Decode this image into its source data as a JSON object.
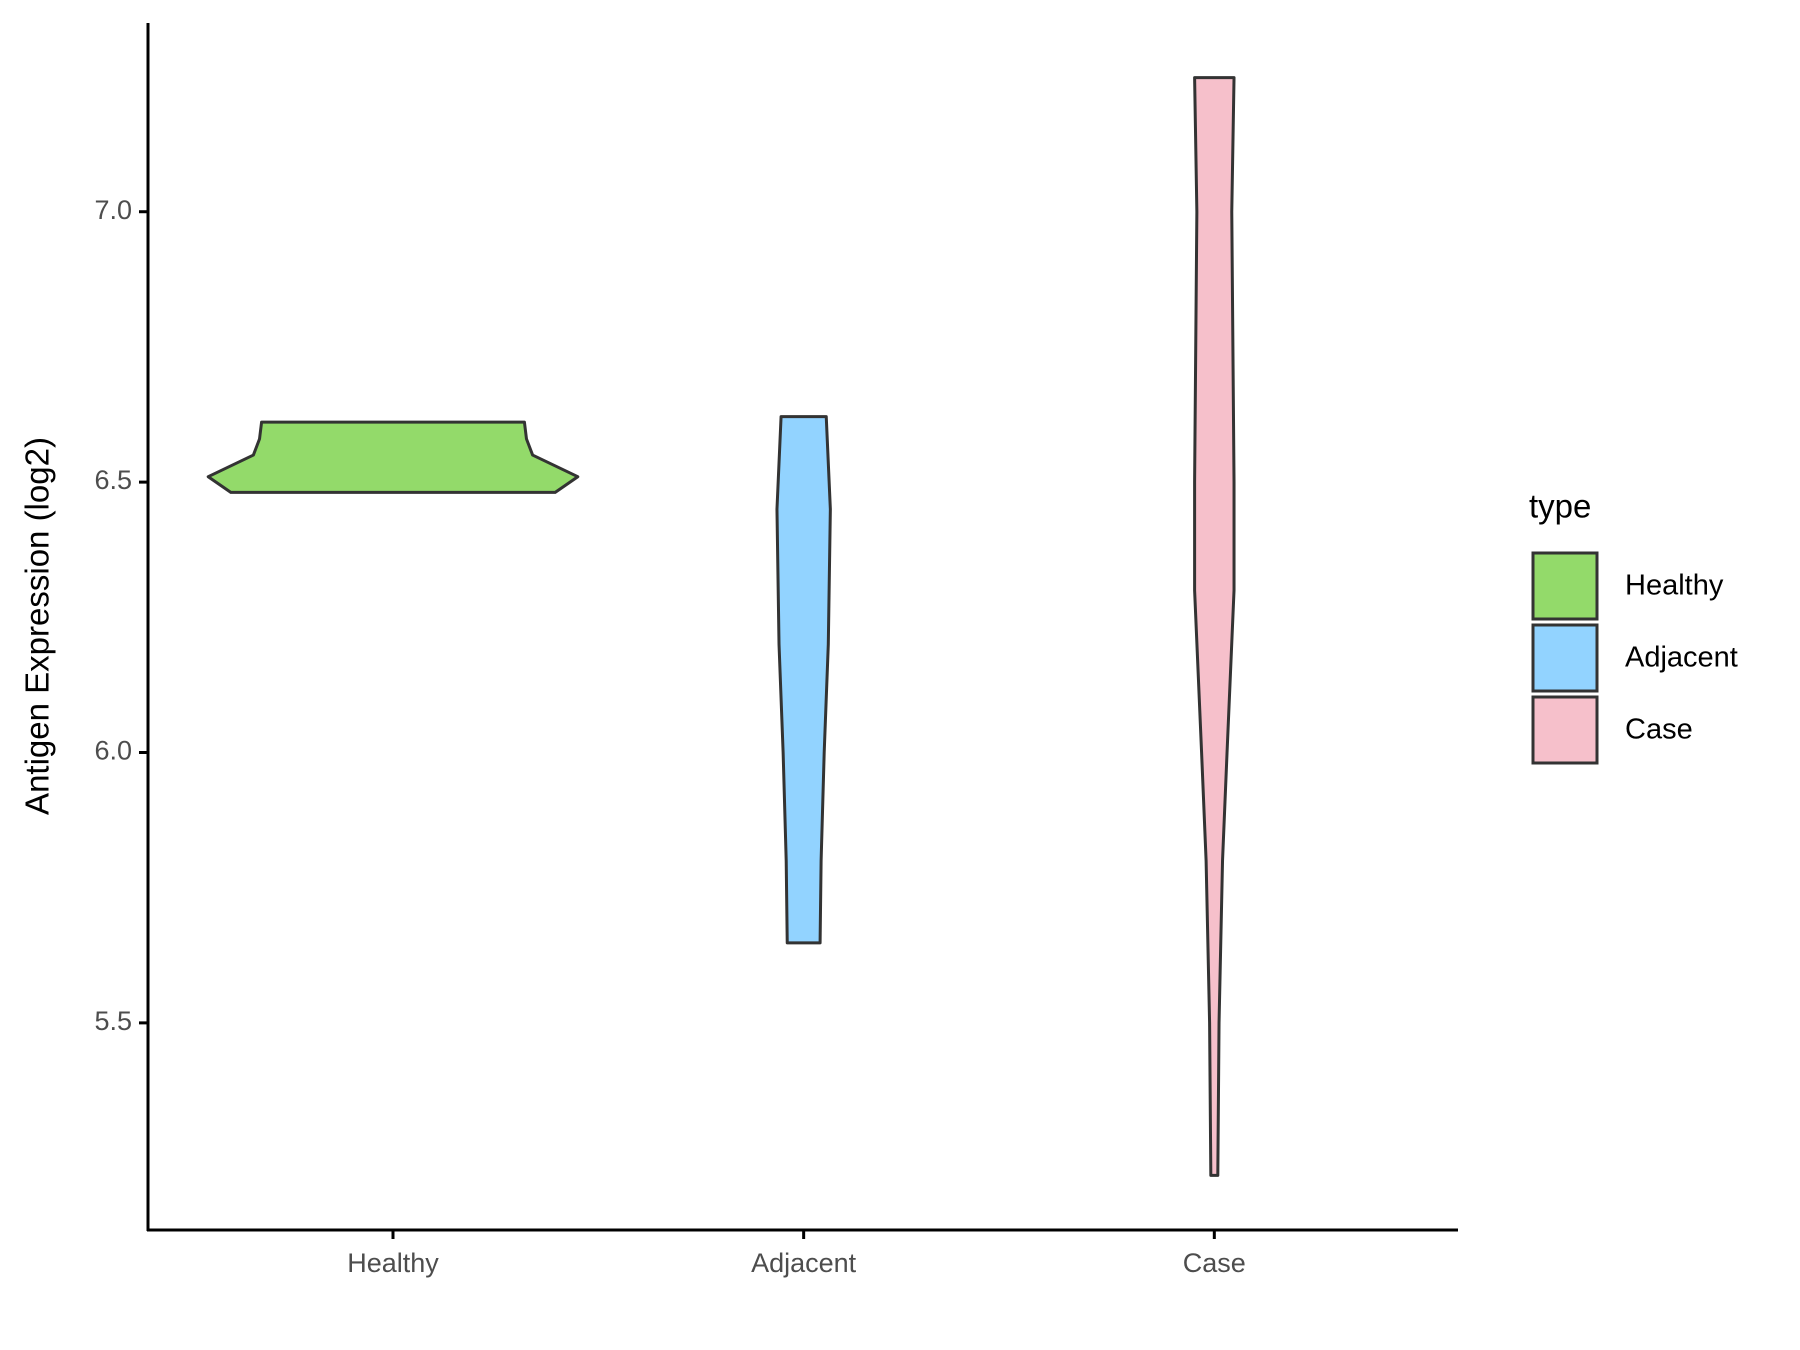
{
  "chart_data": {
    "type": "violin",
    "y_label": "Antigen Expression (log2)",
    "legend_title": "type",
    "categories": [
      "Healthy",
      "Adjacent",
      "Case"
    ],
    "ylim": [
      5.117,
      7.349
    ],
    "yticks": [
      5.5,
      {
        "value": 6,
        "label": "6.0"
      },
      6.5,
      {
        "value": 7,
        "label": "7.0"
      }
    ],
    "series": [
      {
        "name": "Healthy",
        "color": "#93da6a",
        "y": [
          6.481,
          6.51,
          6.55,
          6.58,
          6.611
        ],
        "width": [
          0.79,
          0.9,
          0.68,
          0.65,
          0.64
        ]
      },
      {
        "name": "Adjacent",
        "color": "#92d3ff",
        "y": [
          5.648,
          5.8,
          6.0,
          6.2,
          6.45,
          6.621
        ],
        "width": [
          0.08,
          0.085,
          0.1,
          0.12,
          0.13,
          0.11
        ]
      },
      {
        "name": "Case",
        "color": "#f6c0cb",
        "y": [
          5.218,
          5.5,
          5.8,
          6.0,
          6.3,
          6.5,
          7.0,
          7.248
        ],
        "width": [
          0.017,
          0.023,
          0.04,
          0.062,
          0.096,
          0.096,
          0.085,
          0.096
        ]
      }
    ]
  }
}
